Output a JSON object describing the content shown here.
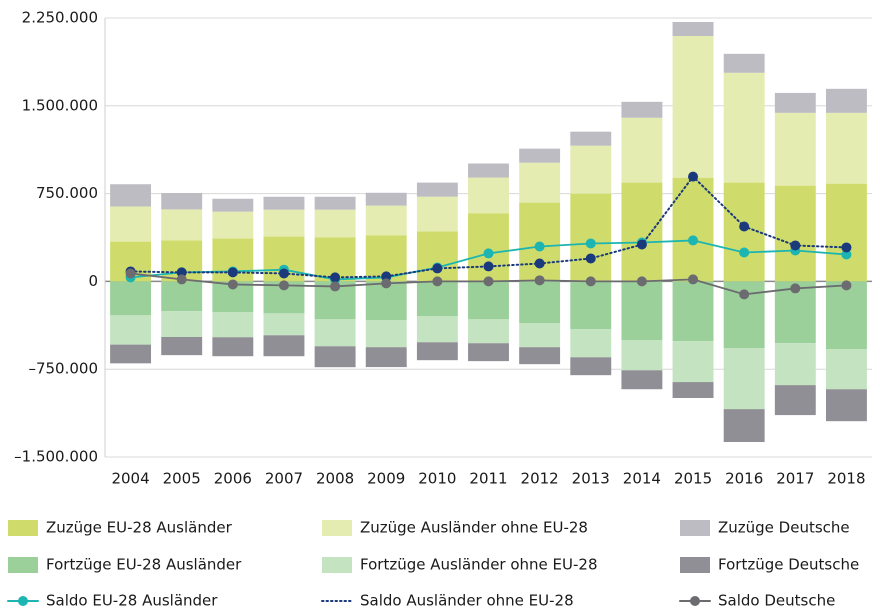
{
  "chart_data": {
    "type": "bar",
    "categories": [
      "2004",
      "2005",
      "2006",
      "2007",
      "2008",
      "2009",
      "2010",
      "2011",
      "2012",
      "2013",
      "2014",
      "2015",
      "2016",
      "2017",
      "2018"
    ],
    "ylim": [
      -1500000,
      2250000
    ],
    "yticks": [
      {
        "value": -1500000,
        "label": "–1.500.000"
      },
      {
        "value": -750000,
        "label": "–750.000"
      },
      0,
      {
        "value": 750000,
        "label": "750.000"
      },
      {
        "value": 1500000,
        "label": "1.500.000"
      },
      {
        "value": 2250000,
        "label": "2.250.000"
      }
    ],
    "grid": true,
    "series": [
      {
        "name": "Zuzüge EU-28 Ausländer",
        "type": "bar",
        "color": "#cfdc6c",
        "values": [
          340000,
          350000,
          366000,
          383000,
          375000,
          392000,
          426000,
          580000,
          673000,
          750000,
          844000,
          886000,
          844000,
          818000,
          835000
        ]
      },
      {
        "name": "Zuzüge Ausländer ohne EU-28",
        "type": "bar",
        "color": "#e5ecb1",
        "values": [
          300000,
          265000,
          230000,
          230000,
          238000,
          255000,
          298000,
          307000,
          341000,
          409000,
          554000,
          1210000,
          938000,
          622000,
          605000
        ]
      },
      {
        "name": "Zuzüge Deutsche",
        "type": "bar",
        "color": "#bcbcc2",
        "values": [
          190000,
          140000,
          110000,
          110000,
          110000,
          110000,
          120000,
          120000,
          120000,
          120000,
          136000,
          120000,
          162000,
          170000,
          205000
        ]
      },
      {
        "name": "Fortzüge EU-28 Ausländer",
        "type": "bar",
        "color": "#9bd09b",
        "values": [
          -290000,
          -255000,
          -264000,
          -273000,
          -324000,
          -332000,
          -298000,
          -324000,
          -358000,
          -409000,
          -503000,
          -511000,
          -571000,
          -528000,
          -580000
        ]
      },
      {
        "name": "Fortzüge Ausländer ohne EU-28",
        "type": "bar",
        "color": "#c4e3c1",
        "values": [
          -250000,
          -220000,
          -213000,
          -187000,
          -230000,
          -230000,
          -222000,
          -204000,
          -204000,
          -239000,
          -256000,
          -349000,
          -520000,
          -358000,
          -341000
        ]
      },
      {
        "name": "Fortzüge Deutsche",
        "type": "bar",
        "color": "#8f8f95",
        "values": [
          -160000,
          -155000,
          -162000,
          -179000,
          -179000,
          -170000,
          -153000,
          -153000,
          -145000,
          -153000,
          -162000,
          -136000,
          -281000,
          -256000,
          -273000
        ]
      },
      {
        "name": "Saldo EU-28 Ausländer",
        "type": "line",
        "color": "#1cb5b1",
        "markers": true,
        "values": [
          34000,
          77000,
          85000,
          100000,
          17000,
          34000,
          119000,
          239000,
          298000,
          324000,
          332000,
          350000,
          247000,
          264000,
          230000
        ]
      },
      {
        "name": "Saldo Ausländer ohne EU-28",
        "type": "line",
        "color": "#1b3a7c",
        "markers": true,
        "dotted": true,
        "values": [
          85000,
          77000,
          77000,
          68000,
          34000,
          43000,
          111000,
          128000,
          153000,
          196000,
          315000,
          895000,
          469000,
          307000,
          290000
        ]
      },
      {
        "name": "Saldo Deutsche",
        "type": "line",
        "color": "#6b6b70",
        "markers": true,
        "values": [
          68000,
          17000,
          -26000,
          -34000,
          -43000,
          -17000,
          0,
          0,
          9000,
          0,
          0,
          17000,
          -111000,
          -60000,
          -34000
        ]
      }
    ]
  }
}
